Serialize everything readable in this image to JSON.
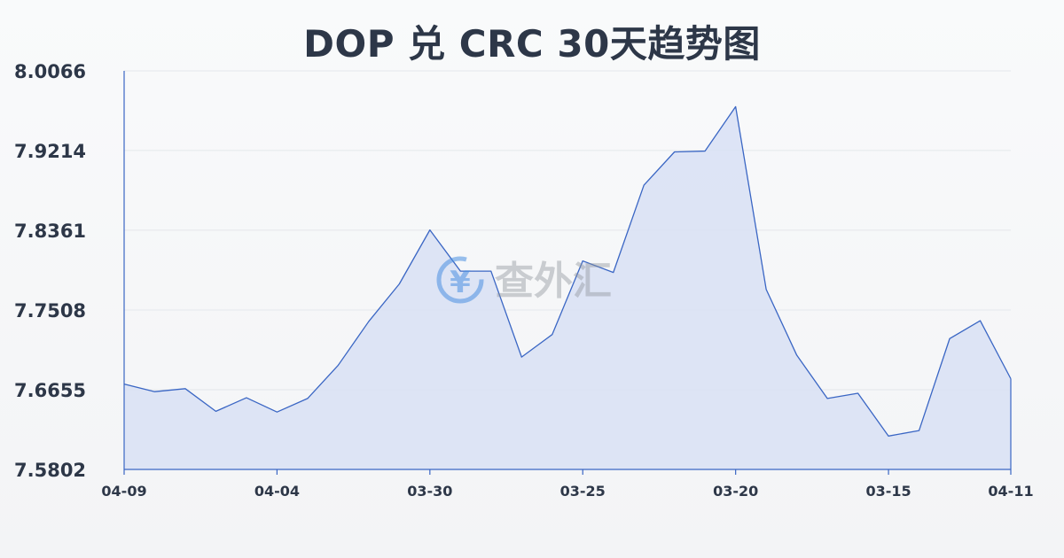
{
  "chart_data": {
    "type": "area",
    "title": "DOP 兑 CRC 30天趋势图",
    "xlabel": "",
    "ylabel": "",
    "ylim": [
      7.5802,
      8.0066
    ],
    "y_ticks": [
      "8.0066",
      "7.9214",
      "7.8361",
      "7.7508",
      "7.6655",
      "7.5802"
    ],
    "x_ticks": [
      "04-09",
      "04-04",
      "03-30",
      "03-25",
      "03-20",
      "03-15",
      "04-11"
    ],
    "x_tick_positions": [
      0,
      5,
      10,
      15,
      20,
      25,
      29
    ],
    "values": [
      7.6715,
      7.6634,
      7.6666,
      7.6424,
      7.6569,
      7.6416,
      7.6561,
      7.6916,
      7.7385,
      7.7786,
      7.8364,
      7.7923,
      7.7923,
      7.7004,
      7.7245,
      7.8033,
      7.7909,
      7.8843,
      7.9199,
      7.9208,
      7.9683,
      7.7728,
      7.7024,
      7.6561,
      7.6617,
      7.6159,
      7.6218,
      7.7201,
      7.7393,
      7.6772
    ],
    "grid": true,
    "colors": {
      "line": "#3a66c4",
      "fill": "#d8e1f5",
      "grid": "#e4e7eb",
      "axis": "#3a66c4",
      "text": "#2d3748"
    }
  },
  "watermark": {
    "text": "查外汇",
    "icon": "yen-exchange-icon"
  }
}
